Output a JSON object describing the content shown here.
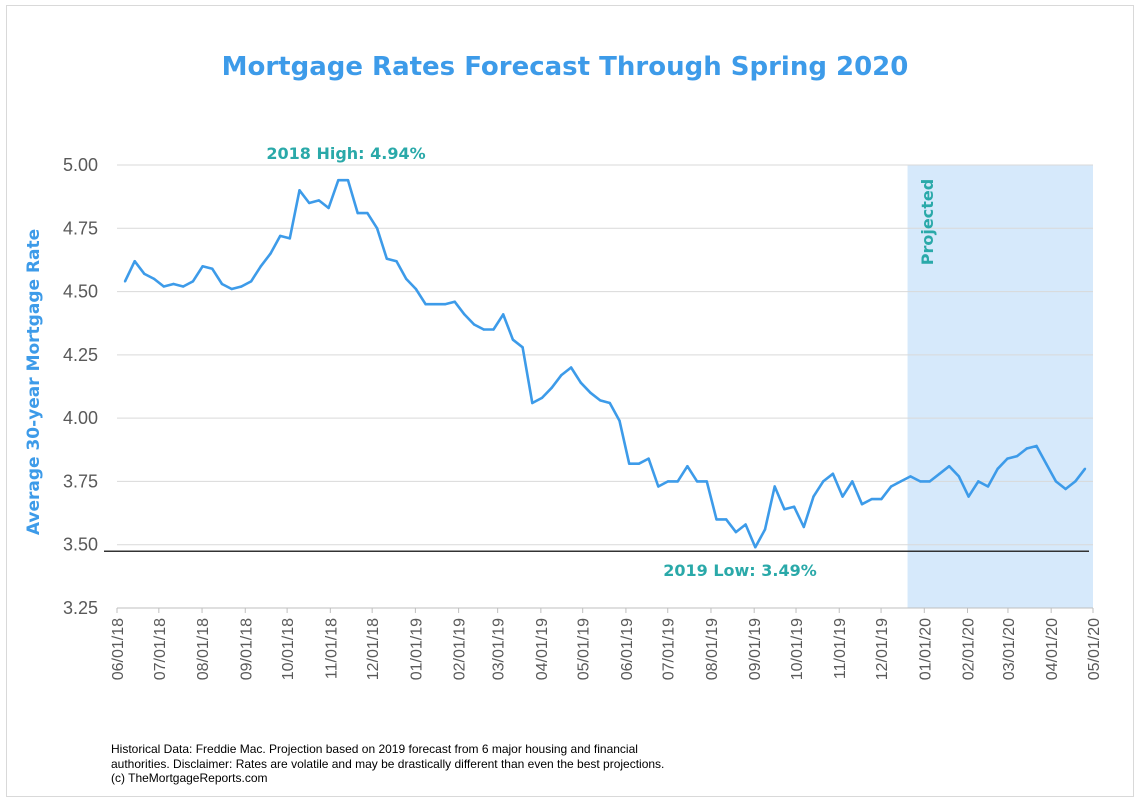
{
  "chart_data": {
    "type": "line",
    "title": "Mortgage Rates Forecast Through Spring 2020",
    "xlabel": "",
    "ylabel": "Average 30-year Mortgage Rate",
    "ylim": [
      3.25,
      5.0
    ],
    "yticks": [
      "3.25",
      "3.50",
      "3.75",
      "4.00",
      "4.25",
      "4.50",
      "4.75",
      "5.00"
    ],
    "grid": true,
    "xticks": [
      "06/01/18",
      "07/01/18",
      "08/01/18",
      "09/01/18",
      "10/01/18",
      "11/01/18",
      "12/01/18",
      "01/01/19",
      "02/01/19",
      "03/01/19",
      "04/01/19",
      "05/01/19",
      "06/01/19",
      "07/01/19",
      "08/01/19",
      "09/01/19",
      "10/01/19",
      "11/01/19",
      "12/01/19",
      "01/01/20",
      "02/01/20",
      "03/01/20",
      "04/01/20",
      "05/01/20"
    ],
    "series": [
      {
        "name": "Average 30-year Mortgage Rate",
        "color": "#3d9be9",
        "values": [
          4.54,
          4.62,
          4.57,
          4.55,
          4.52,
          4.53,
          4.52,
          4.54,
          4.6,
          4.59,
          4.53,
          4.51,
          4.52,
          4.54,
          4.6,
          4.65,
          4.72,
          4.71,
          4.9,
          4.85,
          4.86,
          4.83,
          4.94,
          4.94,
          4.81,
          4.81,
          4.75,
          4.63,
          4.62,
          4.55,
          4.51,
          4.45,
          4.45,
          4.45,
          4.46,
          4.41,
          4.37,
          4.35,
          4.35,
          4.41,
          4.31,
          4.28,
          4.06,
          4.08,
          4.12,
          4.17,
          4.2,
          4.14,
          4.1,
          4.07,
          4.06,
          3.99,
          3.82,
          3.82,
          3.84,
          3.73,
          3.75,
          3.75,
          3.81,
          3.75,
          3.75,
          3.6,
          3.6,
          3.55,
          3.58,
          3.49,
          3.56,
          3.73,
          3.64,
          3.65,
          3.57,
          3.69,
          3.75,
          3.78,
          3.69,
          3.75,
          3.66,
          3.68,
          3.68,
          3.73,
          3.75,
          3.77,
          3.75,
          3.75,
          3.78,
          3.81,
          3.77,
          3.69,
          3.75,
          3.73,
          3.8,
          3.84,
          3.85,
          3.88,
          3.89,
          3.82,
          3.75,
          3.72,
          3.75,
          3.8
        ]
      }
    ],
    "projected_region": {
      "label": "Projected",
      "start": "12/20/19",
      "end": "05/01/20",
      "color": "#d6e9fb"
    },
    "reference_line": {
      "value": 3.49,
      "color": "#333333"
    },
    "annotations": [
      {
        "text": "2018 High: 4.94%",
        "value": 4.94
      },
      {
        "text": "2019 Low: 3.49%",
        "value": 3.49
      }
    ]
  },
  "footer": {
    "lines": [
      "Historical Data: Freddie Mac.  Projection based on 2019 forecast from 6 major housing and financial",
      "authorities. Disclaimer: Rates are volatile and may be drastically different than even the best projections.",
      "(c) TheMortgageReports.com"
    ]
  }
}
